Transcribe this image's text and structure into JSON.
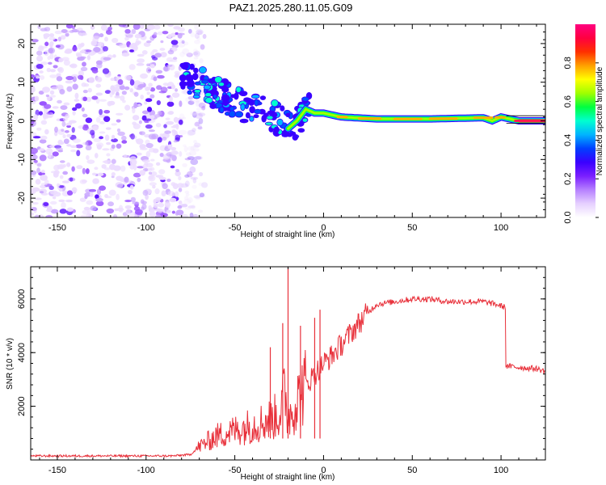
{
  "figure_title": "PAZ1.2025.280.11.05.G09",
  "chart_data": [
    {
      "type": "heatmap",
      "title": "PAZ1.2025.280.11.05.G09",
      "xlabel": "Height of straight line (km)",
      "ylabel": "Frequency (Hz)",
      "xlim": [
        -165,
        125
      ],
      "ylim": [
        -25,
        25
      ],
      "xticks": [
        -150,
        -100,
        -50,
        0,
        50,
        100
      ],
      "yticks": [
        -20,
        -10,
        0,
        10,
        20
      ],
      "colorbar": {
        "label": "Normalized spectral amplitude",
        "range": [
          0,
          1
        ],
        "ticks": [
          "0.0",
          "0.2",
          "0.4",
          "0.6",
          "0.8"
        ],
        "colors": [
          "#ffffff",
          "#e6d0ff",
          "#b680ff",
          "#7a1fff",
          "#3a00ff",
          "#0040ff",
          "#00b4ff",
          "#00ffd0",
          "#00ff40",
          "#a0ff00",
          "#ffff00",
          "#ffa000",
          "#ff3000",
          "#ff0040",
          "#ff0080"
        ]
      },
      "regions": [
        {
          "name": "noise",
          "x": [
            -165,
            -75
          ],
          "f": [
            -25,
            25
          ],
          "amplitude": 0.2
        },
        {
          "name": "transition",
          "x": [
            -80,
            -10
          ],
          "f_center": [
            10,
            0
          ],
          "amplitude": 0.35
        },
        {
          "name": "signal",
          "x": [
            -10,
            125
          ],
          "f_center": 0.5,
          "amplitude": 0.9
        }
      ],
      "trace": [
        {
          "x": -80,
          "f": 11
        },
        {
          "x": -70,
          "f": 10
        },
        {
          "x": -60,
          "f": 7
        },
        {
          "x": -50,
          "f": 5
        },
        {
          "x": -40,
          "f": 3
        },
        {
          "x": -30,
          "f": 2
        },
        {
          "x": -20,
          "f": -2
        },
        {
          "x": -15,
          "f": 0
        },
        {
          "x": -10,
          "f": 3
        },
        {
          "x": -5,
          "f": 2
        },
        {
          "x": 0,
          "f": 2
        },
        {
          "x": 10,
          "f": 1
        },
        {
          "x": 30,
          "f": 0.5
        },
        {
          "x": 60,
          "f": 0.5
        },
        {
          "x": 90,
          "f": 0.8
        },
        {
          "x": 95,
          "f": 0
        },
        {
          "x": 100,
          "f": 1
        },
        {
          "x": 110,
          "f": 0
        },
        {
          "x": 125,
          "f": 0
        }
      ]
    },
    {
      "type": "line",
      "xlabel": "Height of straight line (km)",
      "ylabel": "SNR (10 * v/v)",
      "xlim": [
        -165,
        125
      ],
      "ylim": [
        0,
        7200
      ],
      "xticks": [
        -150,
        -100,
        -50,
        0,
        50,
        100
      ],
      "yticks": [
        2000,
        4000,
        6000
      ],
      "color": "#e8303a",
      "series": [
        {
          "name": "SNR",
          "x": [
            -165,
            -140,
            -110,
            -85,
            -75,
            -70,
            -65,
            -60,
            -55,
            -50,
            -45,
            -40,
            -35,
            -30,
            -25,
            -22,
            -20,
            -15,
            -10,
            -5,
            0,
            5,
            10,
            15,
            20,
            25,
            30,
            40,
            50,
            60,
            70,
            80,
            90,
            97,
            102,
            103,
            110,
            120,
            125
          ],
          "y": [
            150,
            150,
            150,
            150,
            200,
            500,
            700,
            900,
            1000,
            1100,
            1200,
            1300,
            1400,
            1500,
            1700,
            2500,
            1600,
            2200,
            2800,
            3200,
            3600,
            3900,
            4300,
            4700,
            5100,
            5500,
            5800,
            5900,
            6000,
            6000,
            5900,
            5900,
            5900,
            5800,
            5700,
            3500,
            3450,
            3400,
            3300
          ]
        }
      ],
      "spikes": [
        {
          "x": -20,
          "y": 7200
        },
        {
          "x": -23,
          "y": 5100
        },
        {
          "x": -30,
          "y": 4200
        },
        {
          "x": -13,
          "y": 5000
        },
        {
          "x": -5,
          "y": 5300
        },
        {
          "x": -2,
          "y": 5600
        }
      ]
    }
  ]
}
